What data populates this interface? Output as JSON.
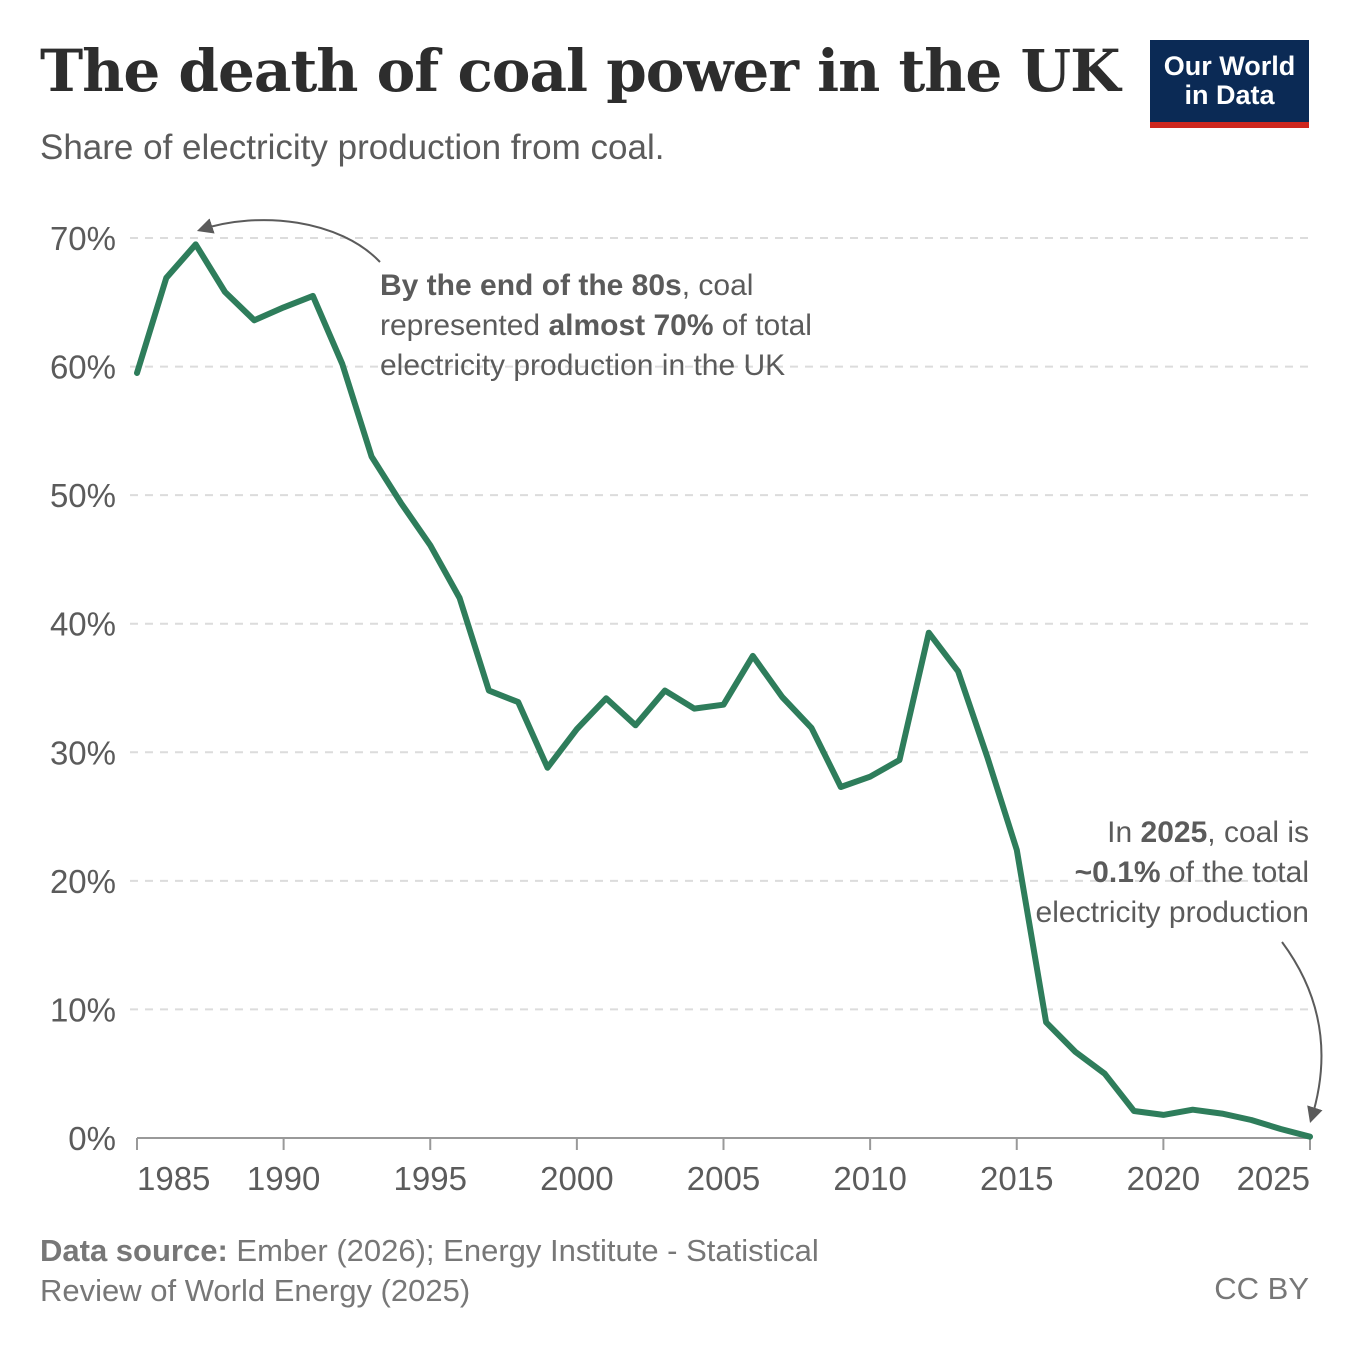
{
  "header": {
    "title": "The death of coal power in the UK",
    "subtitle": "Share of electricity production from coal."
  },
  "logo": {
    "line1": "Our World",
    "line2": "in Data",
    "bg_color": "#0b2a55",
    "accent_color": "#ce261e"
  },
  "annotations": {
    "peak": {
      "bold1": "By the end of the 80s",
      "text1": ", coal represented ",
      "bold2": "almost 70%",
      "text2": " of total electricity production in the UK"
    },
    "latest": {
      "text1": "In ",
      "bold1": "2025",
      "text2": ", coal is",
      "bold2": "~0.1%",
      "text3": " of the total",
      "text4": "electricity production"
    }
  },
  "footer": {
    "source_label": "Data source:",
    "source_text": " Ember (2026); Energy Institute - Statistical Review of World Energy (2025)",
    "license": "CC BY"
  },
  "chart_data": {
    "type": "line",
    "title": "The death of coal power in the UK",
    "subtitle": "Share of electricity production from coal.",
    "xlabel": "",
    "ylabel": "",
    "xlim": [
      1985,
      2025
    ],
    "ylim": [
      0,
      70
    ],
    "x_ticks": [
      1985,
      1990,
      1995,
      2000,
      2005,
      2010,
      2015,
      2020,
      2025
    ],
    "y_ticks": [
      0,
      10,
      20,
      30,
      40,
      50,
      60,
      70
    ],
    "y_tick_labels": [
      "0%",
      "10%",
      "20%",
      "30%",
      "40%",
      "50%",
      "60%",
      "70%"
    ],
    "grid": "horizontal dashed",
    "line_color": "#2e7d5b",
    "series": [
      {
        "name": "",
        "x": [
          1985,
          1986,
          1987,
          1988,
          1989,
          1990,
          1991,
          1992,
          1993,
          1994,
          1995,
          1996,
          1997,
          1998,
          1999,
          2000,
          2001,
          2002,
          2003,
          2004,
          2005,
          2006,
          2007,
          2008,
          2009,
          2010,
          2011,
          2012,
          2013,
          2014,
          2015,
          2016,
          2017,
          2018,
          2019,
          2020,
          2021,
          2022,
          2023,
          2024,
          2025
        ],
        "y": [
          59.5,
          66.9,
          69.5,
          65.8,
          63.6,
          64.6,
          65.5,
          60.2,
          53.0,
          49.4,
          46.1,
          42.0,
          34.8,
          33.9,
          28.8,
          31.8,
          34.2,
          32.1,
          34.8,
          33.4,
          33.7,
          37.5,
          34.3,
          31.9,
          27.3,
          28.1,
          29.4,
          39.3,
          36.3,
          29.6,
          22.4,
          9.0,
          6.7,
          5.0,
          2.1,
          1.8,
          2.2,
          1.9,
          1.4,
          0.7,
          0.1
        ]
      }
    ]
  }
}
